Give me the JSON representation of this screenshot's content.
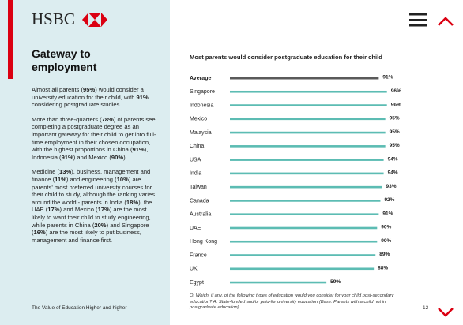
{
  "header": {
    "logo": "HSBC"
  },
  "sidebar": {
    "title": "Gateway to employment",
    "paragraphs": [
      [
        {
          "text": "Almost all parents ("
        },
        {
          "text": "95%",
          "b": true
        },
        {
          "text": ") would consider a university education for their child, with "
        },
        {
          "text": "91%",
          "b": true
        },
        {
          "text": " considering postgraduate studies."
        }
      ],
      [
        {
          "text": "More than three-quarters ("
        },
        {
          "text": "78%",
          "b": true
        },
        {
          "text": ") of parents see completing a postgraduate degree as an important gateway for their child to get into full-time employment in their chosen occupation, with the highest proportions in China ("
        },
        {
          "text": "91%",
          "b": true
        },
        {
          "text": "), Indonesia ("
        },
        {
          "text": "91%",
          "b": true
        },
        {
          "text": ") and Mexico ("
        },
        {
          "text": "90%",
          "b": true
        },
        {
          "text": ")."
        }
      ],
      [
        {
          "text": "Medicine ("
        },
        {
          "text": "13%",
          "b": true
        },
        {
          "text": "), business, management and finance ("
        },
        {
          "text": "11%",
          "b": true
        },
        {
          "text": ") and engineering ("
        },
        {
          "text": "10%",
          "b": true
        },
        {
          "text": ") are parents' most preferred university courses for their child to study, although the ranking varies around the world - parents in India ("
        },
        {
          "text": "18%",
          "b": true
        },
        {
          "text": "), the UAE ("
        },
        {
          "text": "17%",
          "b": true
        },
        {
          "text": ") and Mexico ("
        },
        {
          "text": "17%",
          "b": true
        },
        {
          "text": ") are the most likely to want their child to study engineering, while parents in China ("
        },
        {
          "text": "20%",
          "b": true
        },
        {
          "text": ") and Singapore ("
        },
        {
          "text": "16%",
          "b": true
        },
        {
          "text": ") are the most likely to put business, management and finance first."
        }
      ]
    ]
  },
  "chart_data": {
    "type": "bar",
    "orientation": "horizontal",
    "title": "Most parents would consider postgraduate education for their child",
    "categories": [
      "Average",
      "Singapore",
      "Indonesia",
      "Mexico",
      "Malaysia",
      "China",
      "USA",
      "India",
      "Taiwan",
      "Canada",
      "Australia",
      "UAE",
      "Hong Kong",
      "France",
      "UK",
      "Egypt"
    ],
    "values": [
      91,
      96,
      96,
      95,
      95,
      95,
      94,
      94,
      93,
      92,
      91,
      90,
      90,
      89,
      88,
      59
    ],
    "value_labels": [
      "91%",
      "96%",
      "96%",
      "95%",
      "95%",
      "95%",
      "94%",
      "94%",
      "93%",
      "92%",
      "91%",
      "90%",
      "90%",
      "89%",
      "88%",
      "59%"
    ],
    "colors": [
      "#5a5a5a",
      "#5cbcb3",
      "#5cbcb3",
      "#5cbcb3",
      "#5cbcb3",
      "#5cbcb3",
      "#5cbcb3",
      "#5cbcb3",
      "#5cbcb3",
      "#5cbcb3",
      "#5cbcb3",
      "#5cbcb3",
      "#5cbcb3",
      "#5cbcb3",
      "#5cbcb3",
      "#5cbcb3"
    ],
    "note": "Q. Which, if any, of the following types of education would you consider for your child post-secondary education? A. State-funded and/or paid-for university education (Base: Parents with a child not in postgraduate education)"
  },
  "footer": {
    "text": "The Value of Education Higher and higher",
    "page": "12"
  }
}
